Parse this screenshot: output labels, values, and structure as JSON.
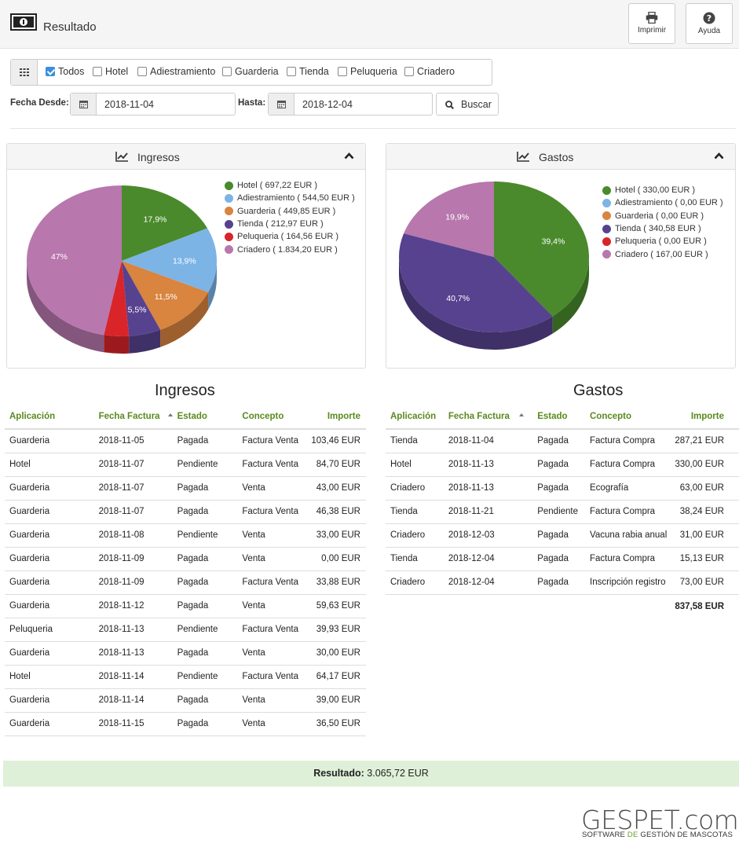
{
  "header": {
    "title": "Resultado",
    "print_label": "Imprimir",
    "help_label": "Ayuda"
  },
  "filters": {
    "checkboxes": [
      {
        "label": "Todos",
        "checked": true
      },
      {
        "label": "Hotel",
        "checked": false
      },
      {
        "label": "Adiestramiento",
        "checked": false
      },
      {
        "label": "Guarderia",
        "checked": false
      },
      {
        "label": "Tienda",
        "checked": false
      },
      {
        "label": "Peluqueria",
        "checked": false
      },
      {
        "label": "Criadero",
        "checked": false
      }
    ],
    "from_label": "Fecha Desde:",
    "from_value": "2018-11-04",
    "to_label": "Hasta:",
    "to_value": "2018-12-04",
    "search_label": "Buscar"
  },
  "colors": {
    "hotel": "#4a8a2c",
    "adiestramiento": "#7db4e6",
    "guarderia": "#d9843f",
    "tienda": "#57428f",
    "peluqueria": "#d9242a",
    "criadero": "#b877ad"
  },
  "chart_data": [
    {
      "type": "pie",
      "title": "Ingresos",
      "slices": [
        {
          "key": "hotel",
          "legend": "Hotel ( 697,22 EUR )",
          "value": 697.22,
          "label": "17,9%"
        },
        {
          "key": "adiestramiento",
          "legend": "Adiestramiento ( 544,50 EUR )",
          "value": 544.5,
          "label": "13,9%"
        },
        {
          "key": "guarderia",
          "legend": "Guarderia ( 449,85 EUR )",
          "value": 449.85,
          "label": "11,5%"
        },
        {
          "key": "tienda",
          "legend": "Tienda ( 212,97 EUR )",
          "value": 212.97,
          "label": "5,5%"
        },
        {
          "key": "peluqueria",
          "legend": "Peluqueria ( 164,56 EUR )",
          "value": 164.56,
          "label": ""
        },
        {
          "key": "criadero",
          "legend": "Criadero ( 1.834,20 EUR )",
          "value": 1834.2,
          "label": "47%"
        }
      ]
    },
    {
      "type": "pie",
      "title": "Gastos",
      "slices": [
        {
          "key": "hotel",
          "legend": "Hotel ( 330,00 EUR )",
          "value": 330.0,
          "label": "39,4%"
        },
        {
          "key": "adiestramiento",
          "legend": "Adiestramiento ( 0,00 EUR )",
          "value": 0,
          "label": ""
        },
        {
          "key": "guarderia",
          "legend": "Guarderia ( 0,00 EUR )",
          "value": 0,
          "label": ""
        },
        {
          "key": "tienda",
          "legend": "Tienda ( 340,58 EUR )",
          "value": 340.58,
          "label": "40,7%"
        },
        {
          "key": "peluqueria",
          "legend": "Peluqueria ( 0,00 EUR )",
          "value": 0,
          "label": ""
        },
        {
          "key": "criadero",
          "legend": "Criadero ( 167,00 EUR )",
          "value": 167.0,
          "label": "19,9%"
        }
      ]
    }
  ],
  "ingresos": {
    "title": "Ingresos",
    "columns": [
      "Aplicación",
      "Fecha Factura",
      "Estado",
      "Concepto",
      "Importe"
    ],
    "rows": [
      [
        "Guarderia",
        "2018-11-05",
        "Pagada",
        "Factura Venta",
        "103,46 EUR"
      ],
      [
        "Hotel",
        "2018-11-07",
        "Pendiente",
        "Factura Venta",
        "84,70 EUR"
      ],
      [
        "Guarderia",
        "2018-11-07",
        "Pagada",
        "Venta",
        "43,00 EUR"
      ],
      [
        "Guarderia",
        "2018-11-07",
        "Pagada",
        "Factura Venta",
        "46,38 EUR"
      ],
      [
        "Guarderia",
        "2018-11-08",
        "Pendiente",
        "Venta",
        "33,00 EUR"
      ],
      [
        "Guarderia",
        "2018-11-09",
        "Pagada",
        "Venta",
        "0,00 EUR"
      ],
      [
        "Guarderia",
        "2018-11-09",
        "Pagada",
        "Factura Venta",
        "33,88 EUR"
      ],
      [
        "Guarderia",
        "2018-11-12",
        "Pagada",
        "Venta",
        "59,63 EUR"
      ],
      [
        "Peluqueria",
        "2018-11-13",
        "Pendiente",
        "Factura Venta",
        "39,93 EUR"
      ],
      [
        "Guarderia",
        "2018-11-13",
        "Pagada",
        "Venta",
        "30,00 EUR"
      ],
      [
        "Hotel",
        "2018-11-14",
        "Pendiente",
        "Factura Venta",
        "64,17 EUR"
      ],
      [
        "Guarderia",
        "2018-11-14",
        "Pagada",
        "Venta",
        "39,00 EUR"
      ],
      [
        "Guarderia",
        "2018-11-15",
        "Pagada",
        "Venta",
        "36,50 EUR"
      ]
    ]
  },
  "gastos": {
    "title": "Gastos",
    "columns": [
      "Aplicación",
      "Fecha Factura",
      "Estado",
      "Concepto",
      "Importe"
    ],
    "rows": [
      [
        "Tienda",
        "2018-11-04",
        "Pagada",
        "Factura Compra",
        "287,21 EUR"
      ],
      [
        "Hotel",
        "2018-11-13",
        "Pagada",
        "Factura Compra",
        "330,00 EUR"
      ],
      [
        "Criadero",
        "2018-11-13",
        "Pagada",
        "Ecografía",
        "63,00 EUR"
      ],
      [
        "Tienda",
        "2018-11-21",
        "Pendiente",
        "Factura Compra",
        "38,24 EUR"
      ],
      [
        "Criadero",
        "2018-12-03",
        "Pagada",
        "Vacuna rabia anual",
        "31,00 EUR"
      ],
      [
        "Tienda",
        "2018-12-04",
        "Pagada",
        "Factura Compra",
        "15,13 EUR"
      ],
      [
        "Criadero",
        "2018-12-04",
        "Pagada",
        "Inscripción registro",
        "73,00 EUR"
      ]
    ],
    "total": "837,58 EUR"
  },
  "result": {
    "label": "Resultado:",
    "value": "3.065,72 EUR"
  },
  "brand": {
    "name": "GESPET.com",
    "tagline_a": "SOFTWARE ",
    "tagline_b": "DE ",
    "tagline_c": "GESTIÓN DE MASCOTAS"
  },
  "icons": {
    "header": "money-icon",
    "print": "print-icon",
    "help": "question-icon",
    "grid": "grid-icon",
    "calendar": "calendar-icon",
    "search": "search-icon",
    "chart": "line-chart-icon",
    "collapse": "chevron-up-icon"
  }
}
